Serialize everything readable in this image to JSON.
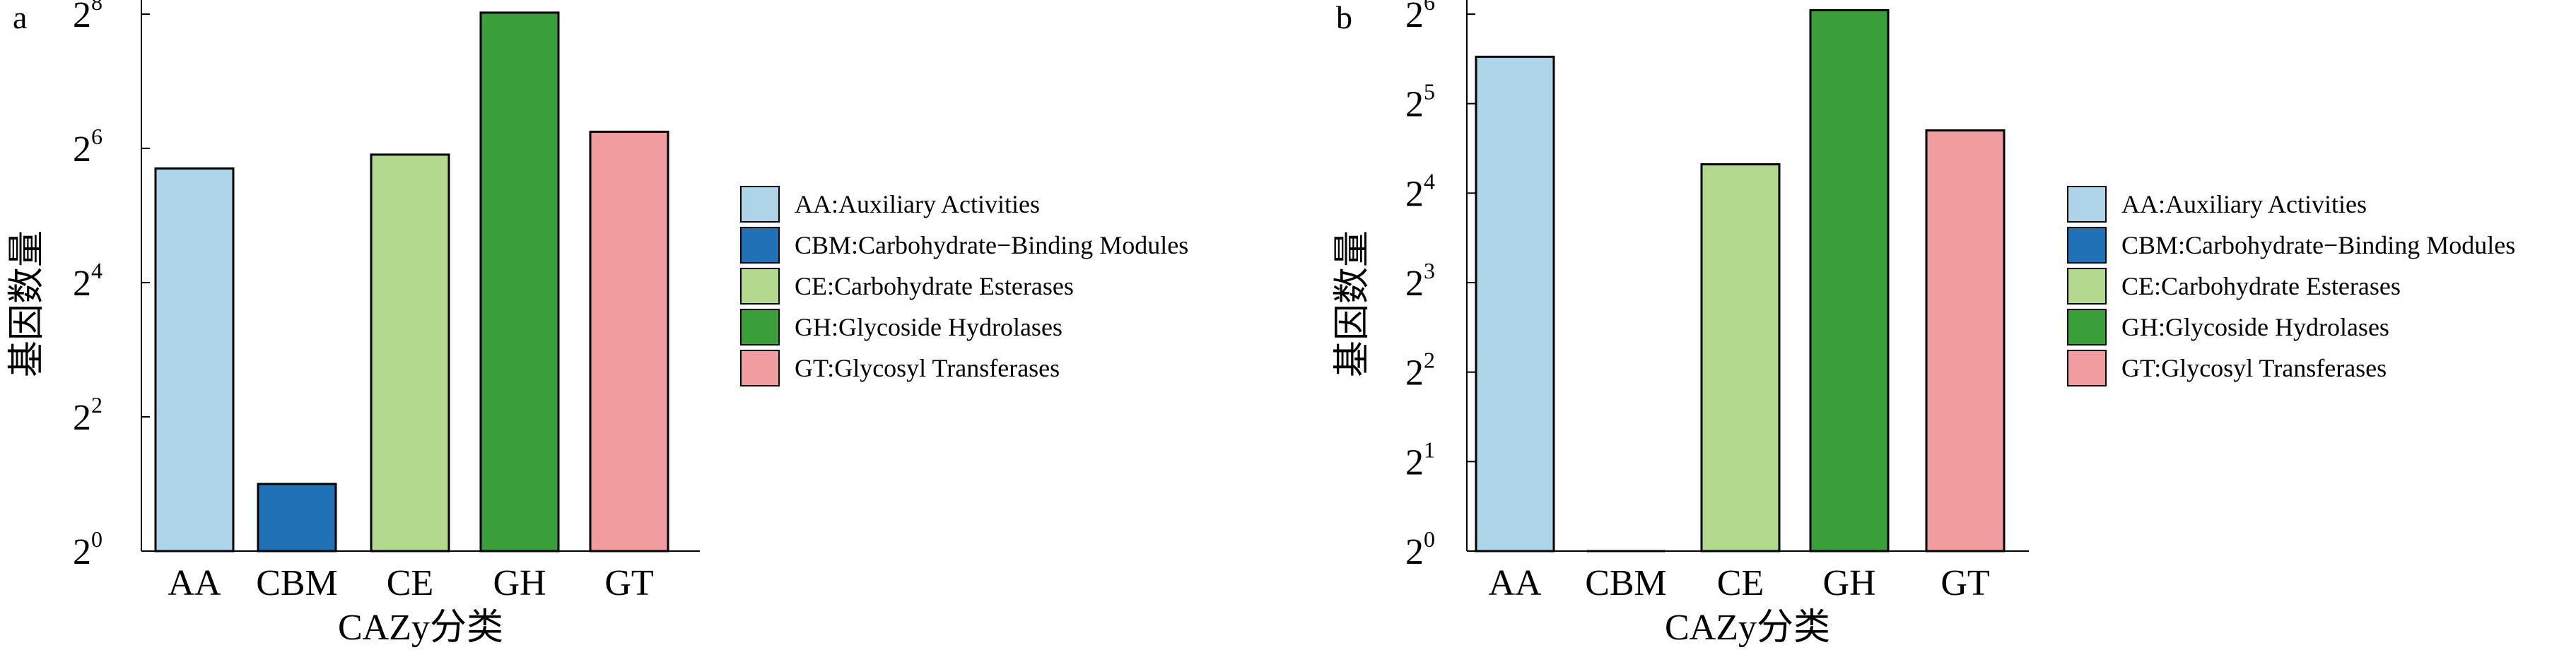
{
  "colors": {
    "AA": "#aed4ea",
    "CBM": "#2071b6",
    "CE": "#b3d98f",
    "GH": "#3a9e3a",
    "GT": "#f19c9e"
  },
  "legend": {
    "AA": "AA:Auxiliary Activities",
    "CBM": "CBM:Carbohydrate−Binding Modules",
    "CE": "CE:Carbohydrate Esterases",
    "GH": "GH:Glycoside Hydrolases",
    "GT": "GT:Glycosyl Transferases"
  },
  "chart_data": [
    {
      "panel": "a",
      "type": "bar",
      "scale": "log2",
      "categories": [
        "AA",
        "CBM",
        "CE",
        "GH",
        "GT"
      ],
      "values": [
        52,
        2,
        60,
        260,
        76
      ],
      "xlabel": "CAZy分类",
      "ylabel": "基因数量",
      "ylim": [
        1,
        256
      ],
      "ytick_base": "2",
      "ytick_exponents": [
        "0",
        "2",
        "4",
        "6",
        "8"
      ],
      "legend_position": "right"
    },
    {
      "panel": "b",
      "type": "bar",
      "scale": "log2",
      "categories": [
        "AA",
        "CBM",
        "CE",
        "GH",
        "GT"
      ],
      "values": [
        46,
        1,
        20,
        66,
        26
      ],
      "xlabel": "CAZy分类",
      "ylabel": "基因数量",
      "ylim": [
        1,
        64
      ],
      "ytick_base": "2",
      "ytick_exponents": [
        "0",
        "1",
        "2",
        "3",
        "4",
        "5",
        "6"
      ],
      "legend_position": "right"
    }
  ]
}
